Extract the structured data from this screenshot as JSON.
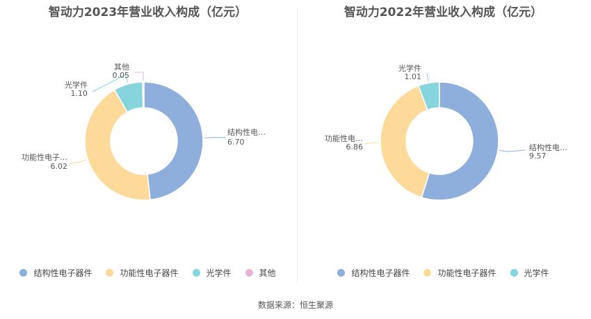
{
  "source_label": "数据来源：恒生聚源",
  "colors": {
    "结构性电子器件": "#8eaedb",
    "功能性电子器件": "#fdd99a",
    "光学件": "#86d4dc",
    "其他": "#e5b4d6"
  },
  "chart_data": [
    {
      "type": "pie",
      "title": "智动力2023年营业收入构成（亿元）",
      "categories": [
        "结构性电子器件",
        "功能性电子器件",
        "光学件",
        "其他"
      ],
      "values": [
        6.7,
        6.02,
        1.1,
        0.05
      ],
      "slice_labels": [
        {
          "name": "结构性电…",
          "value": "6.70"
        },
        {
          "name": "功能性电子…",
          "value": "6.02"
        },
        {
          "name": "光学件",
          "value": "1.10"
        },
        {
          "name": "其他",
          "value": "0.05"
        }
      ],
      "legend": [
        "结构性电子器件",
        "功能性电子器件",
        "光学件",
        "其他"
      ],
      "legend_position": "bottom"
    },
    {
      "type": "pie",
      "title": "智动力2022年营业收入构成（亿元）",
      "categories": [
        "结构性电子器件",
        "功能性电子器件",
        "光学件"
      ],
      "values": [
        9.57,
        6.86,
        1.01
      ],
      "slice_labels": [
        {
          "name": "结构性电…",
          "value": "9.57"
        },
        {
          "name": "功能性电…",
          "value": "6.86"
        },
        {
          "name": "光学件",
          "value": "1.01"
        }
      ],
      "legend": [
        "结构性电子器件",
        "功能性电子器件",
        "光学件"
      ],
      "legend_position": "bottom"
    }
  ]
}
